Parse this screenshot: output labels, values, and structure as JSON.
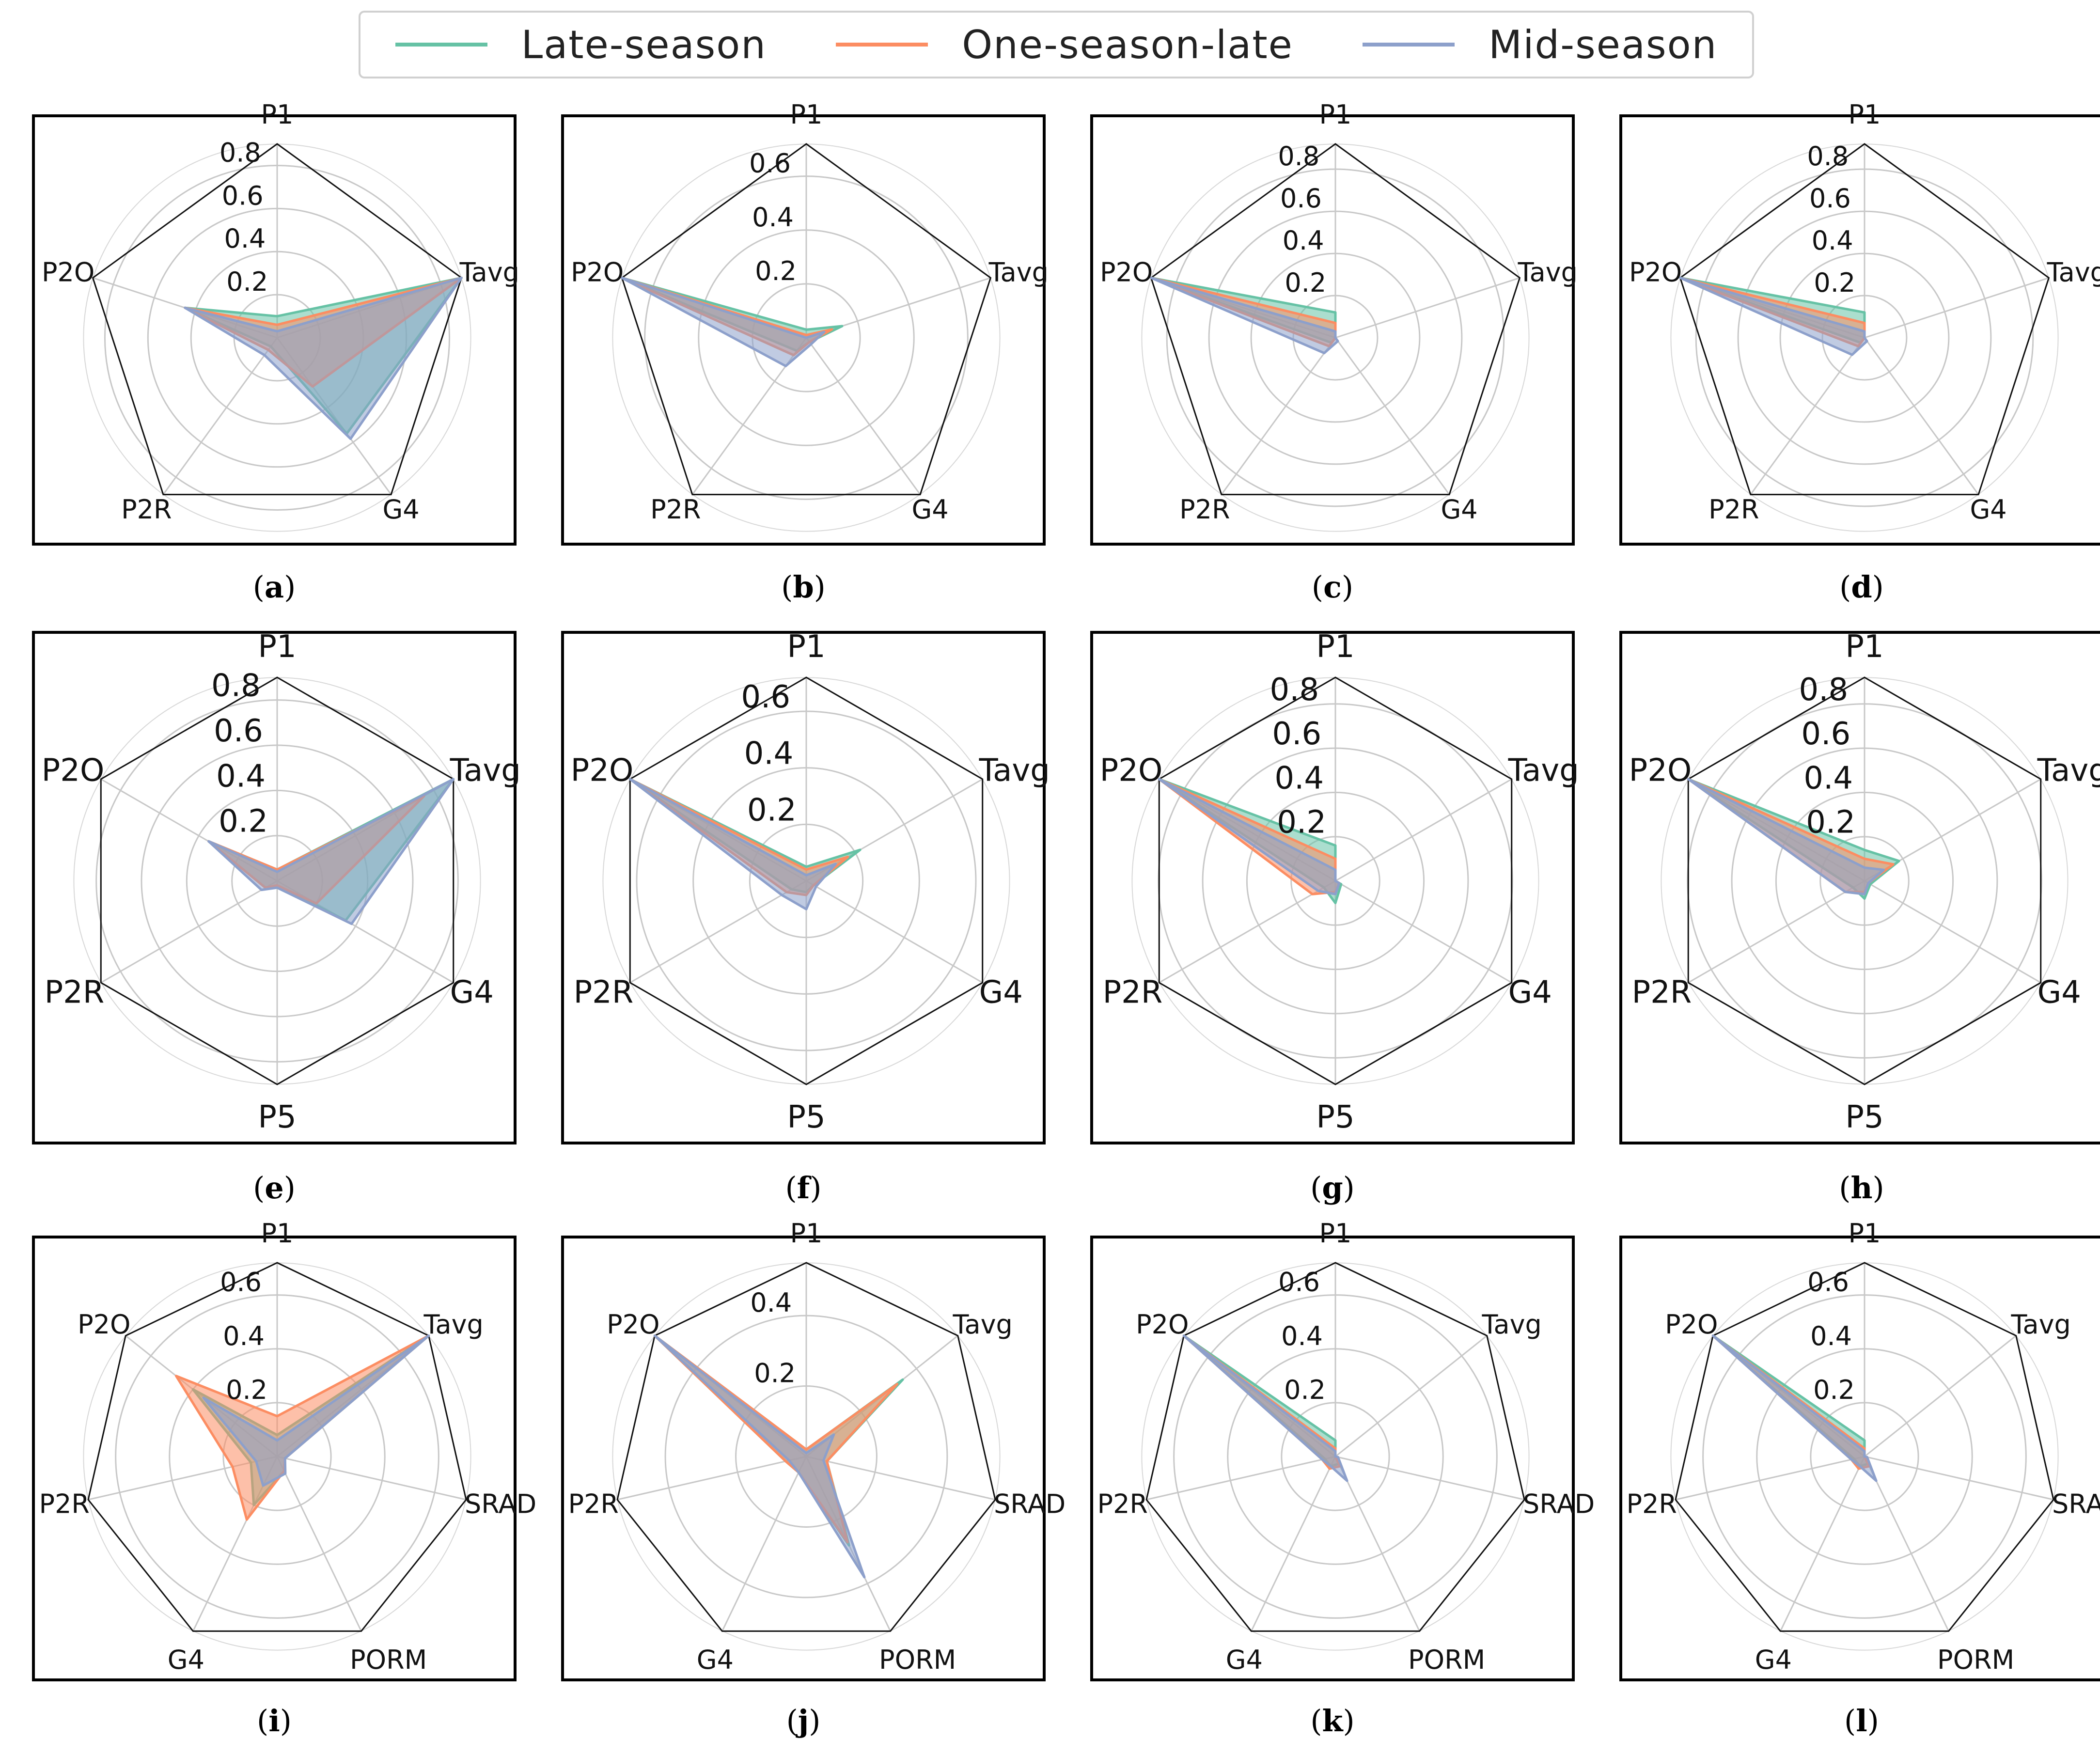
{
  "legend": {
    "items": [
      {
        "label": "Late-season",
        "color": "#66c2a5"
      },
      {
        "label": "One-season-late",
        "color": "#fc8d62"
      },
      {
        "label": "Mid-season",
        "color": "#8da0cb"
      }
    ]
  },
  "chart_data": [
    {
      "id": "a",
      "caption": "a",
      "type": "radar",
      "axes": [
        "P1",
        "Tavg",
        "G4",
        "P2R",
        "P2O"
      ],
      "rticks": [
        "0.2",
        "0.4",
        "0.6",
        "0.8"
      ],
      "rmax": 0.9,
      "series": [
        {
          "name": "Late-season",
          "values": [
            0.1,
            0.9,
            0.55,
            0.05,
            0.45
          ]
        },
        {
          "name": "One-season-late",
          "values": [
            0.06,
            0.9,
            0.28,
            0.07,
            0.45
          ]
        },
        {
          "name": "Mid-season",
          "values": [
            0.03,
            0.9,
            0.58,
            0.1,
            0.45
          ]
        }
      ]
    },
    {
      "id": "b",
      "caption": "b",
      "type": "radar",
      "axes": [
        "P1",
        "Tavg",
        "G4",
        "P2R",
        "P2O"
      ],
      "rticks": [
        "0.2",
        "0.4",
        "0.6"
      ],
      "rmax": 0.72,
      "series": [
        {
          "name": "Late-season",
          "values": [
            0.03,
            0.14,
            0.02,
            0.06,
            0.72
          ]
        },
        {
          "name": "One-season-late",
          "values": [
            0.01,
            0.1,
            0.02,
            0.08,
            0.72
          ]
        },
        {
          "name": "Mid-season",
          "values": [
            0.0,
            0.07,
            0.03,
            0.13,
            0.72
          ]
        }
      ]
    },
    {
      "id": "c",
      "caption": "c",
      "type": "radar",
      "axes": [
        "P1",
        "Tavg",
        "G4",
        "P2R",
        "P2O"
      ],
      "rticks": [
        "0.2",
        "0.4",
        "0.6",
        "0.8"
      ],
      "rmax": 0.92,
      "series": [
        {
          "name": "Late-season",
          "values": [
            0.12,
            0.0,
            0.0,
            0.03,
            0.92
          ]
        },
        {
          "name": "One-season-late",
          "values": [
            0.07,
            0.0,
            0.0,
            0.05,
            0.92
          ]
        },
        {
          "name": "Mid-season",
          "values": [
            0.03,
            0.0,
            0.02,
            0.09,
            0.92
          ]
        }
      ]
    },
    {
      "id": "d",
      "caption": "d",
      "type": "radar",
      "axes": [
        "P1",
        "Tavg",
        "G4",
        "P2R",
        "P2O"
      ],
      "rticks": [
        "0.2",
        "0.4",
        "0.6",
        "0.8"
      ],
      "rmax": 0.92,
      "series": [
        {
          "name": "Late-season",
          "values": [
            0.12,
            0.0,
            0.0,
            0.03,
            0.92
          ]
        },
        {
          "name": "One-season-late",
          "values": [
            0.07,
            0.0,
            0.0,
            0.05,
            0.92
          ]
        },
        {
          "name": "Mid-season",
          "values": [
            0.03,
            0.0,
            0.02,
            0.1,
            0.92
          ]
        }
      ]
    },
    {
      "id": "e",
      "caption": "e",
      "type": "radar",
      "axes": [
        "P1",
        "Tavg",
        "G4",
        "P5",
        "P2R",
        "P2O"
      ],
      "rticks": [
        "0.2",
        "0.4",
        "0.6",
        "0.8"
      ],
      "rmax": 0.9,
      "series": [
        {
          "name": "Late-season",
          "values": [
            0.05,
            0.9,
            0.35,
            0.02,
            0.06,
            0.35
          ]
        },
        {
          "name": "One-season-late",
          "values": [
            0.05,
            0.75,
            0.2,
            0.02,
            0.06,
            0.35
          ]
        },
        {
          "name": "Mid-season",
          "values": [
            0.04,
            0.9,
            0.38,
            0.03,
            0.08,
            0.35
          ]
        }
      ]
    },
    {
      "id": "f",
      "caption": "f",
      "type": "radar",
      "axes": [
        "P1",
        "Tavg",
        "G4",
        "P5",
        "P2R",
        "P2O"
      ],
      "rticks": [
        "0.2",
        "0.4",
        "0.6"
      ],
      "rmax": 0.72,
      "series": [
        {
          "name": "Late-season",
          "values": [
            0.05,
            0.22,
            0.03,
            0.04,
            0.06,
            0.72
          ]
        },
        {
          "name": "One-season-late",
          "values": [
            0.04,
            0.17,
            0.03,
            0.05,
            0.08,
            0.72
          ]
        },
        {
          "name": "Mid-season",
          "values": [
            0.02,
            0.12,
            0.04,
            0.1,
            0.1,
            0.72
          ]
        }
      ]
    },
    {
      "id": "g",
      "caption": "g",
      "type": "radar",
      "axes": [
        "P1",
        "Tavg",
        "G4",
        "P5",
        "P2R",
        "P2O"
      ],
      "rticks": [
        "0.2",
        "0.4",
        "0.6",
        "0.8"
      ],
      "rmax": 0.92,
      "series": [
        {
          "name": "Late-season",
          "values": [
            0.16,
            0.0,
            0.03,
            0.1,
            0.06,
            0.92
          ]
        },
        {
          "name": "One-season-late",
          "values": [
            0.1,
            0.0,
            0.02,
            0.05,
            0.12,
            0.92
          ]
        },
        {
          "name": "Mid-season",
          "values": [
            0.05,
            0.0,
            0.02,
            0.06,
            0.09,
            0.92
          ]
        }
      ]
    },
    {
      "id": "h",
      "caption": "h",
      "type": "radar",
      "axes": [
        "P1",
        "Tavg",
        "G4",
        "P5",
        "P2R",
        "P2O"
      ],
      "rticks": [
        "0.2",
        "0.4",
        "0.6",
        "0.8"
      ],
      "rmax": 0.92,
      "series": [
        {
          "name": "Late-season",
          "values": [
            0.14,
            0.18,
            0.03,
            0.08,
            0.06,
            0.92
          ]
        },
        {
          "name": "One-season-late",
          "values": [
            0.1,
            0.15,
            0.02,
            0.05,
            0.1,
            0.92
          ]
        },
        {
          "name": "Mid-season",
          "values": [
            0.06,
            0.1,
            0.02,
            0.06,
            0.1,
            0.92
          ]
        }
      ]
    },
    {
      "id": "i",
      "caption": "i",
      "type": "radar",
      "axes": [
        "P1",
        "Tavg",
        "SRAD",
        "PORM",
        "G4",
        "P2R",
        "P2O"
      ],
      "rticks": [
        "0.2",
        "0.4",
        "0.6"
      ],
      "rmax": 0.72,
      "series": [
        {
          "name": "Late-season",
          "values": [
            0.08,
            0.72,
            0.03,
            0.06,
            0.2,
            0.1,
            0.4
          ]
        },
        {
          "name": "One-season-late",
          "values": [
            0.15,
            0.72,
            0.03,
            0.06,
            0.26,
            0.17,
            0.48
          ]
        },
        {
          "name": "Mid-season",
          "values": [
            0.06,
            0.72,
            0.03,
            0.07,
            0.12,
            0.08,
            0.35
          ]
        }
      ]
    },
    {
      "id": "j",
      "caption": "j",
      "type": "radar",
      "axes": [
        "P1",
        "Tavg",
        "SRAD",
        "PORM",
        "G4",
        "P2R",
        "P2O"
      ],
      "rticks": [
        "0.2",
        "0.4"
      ],
      "rmax": 0.55,
      "series": [
        {
          "name": "Late-season",
          "values": [
            0.02,
            0.35,
            0.06,
            0.28,
            0.05,
            0.06,
            0.55
          ]
        },
        {
          "name": "One-season-late",
          "values": [
            0.02,
            0.33,
            0.06,
            0.27,
            0.05,
            0.06,
            0.55
          ]
        },
        {
          "name": "Mid-season",
          "values": [
            0.01,
            0.1,
            0.05,
            0.38,
            0.05,
            0.05,
            0.55
          ]
        }
      ]
    },
    {
      "id": "k",
      "caption": "k",
      "type": "radar",
      "axes": [
        "P1",
        "Tavg",
        "SRAD",
        "PORM",
        "G4",
        "P2R",
        "P2O"
      ],
      "rticks": [
        "0.2",
        "0.4",
        "0.6"
      ],
      "rmax": 0.72,
      "series": [
        {
          "name": "Late-season",
          "values": [
            0.06,
            0.0,
            0.0,
            0.03,
            0.04,
            0.04,
            0.72
          ]
        },
        {
          "name": "One-season-late",
          "values": [
            0.03,
            0.0,
            0.0,
            0.04,
            0.05,
            0.05,
            0.72
          ]
        },
        {
          "name": "Mid-season",
          "values": [
            0.02,
            0.0,
            0.01,
            0.1,
            0.04,
            0.05,
            0.72
          ]
        }
      ]
    },
    {
      "id": "l",
      "caption": "l",
      "type": "radar",
      "axes": [
        "P1",
        "Tavg",
        "SRAD",
        "PORM",
        "G4",
        "P2R",
        "P2O"
      ],
      "rticks": [
        "0.2",
        "0.4",
        "0.6"
      ],
      "rmax": 0.72,
      "series": [
        {
          "name": "Late-season",
          "values": [
            0.06,
            0.0,
            0.0,
            0.03,
            0.04,
            0.04,
            0.72
          ]
        },
        {
          "name": "One-season-late",
          "values": [
            0.03,
            0.0,
            0.0,
            0.04,
            0.05,
            0.05,
            0.72
          ]
        },
        {
          "name": "Mid-season",
          "values": [
            0.02,
            0.0,
            0.01,
            0.1,
            0.04,
            0.05,
            0.72
          ]
        }
      ]
    }
  ]
}
